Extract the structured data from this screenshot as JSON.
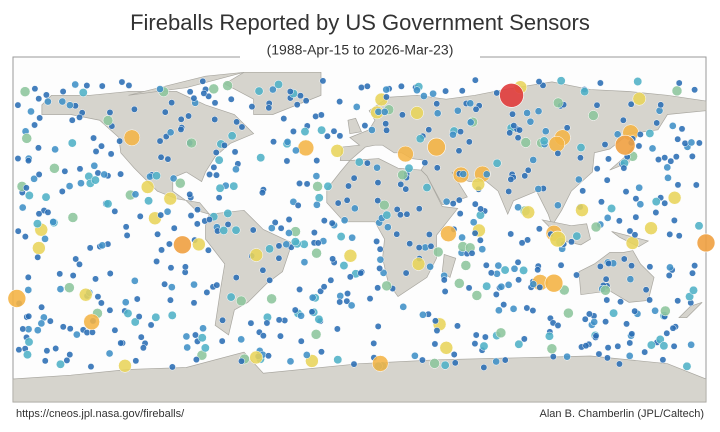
{
  "header": {
    "title": "Fireballs Reported by US Government Sensors",
    "subtitle": "(1988-Apr-15 to 2026-Mar-23)"
  },
  "footer": {
    "source": "https://cneos.jpl.nasa.gov/fireballs/",
    "credit": "Alan B. Chamberlin (JPL/Caltech)"
  }
}
